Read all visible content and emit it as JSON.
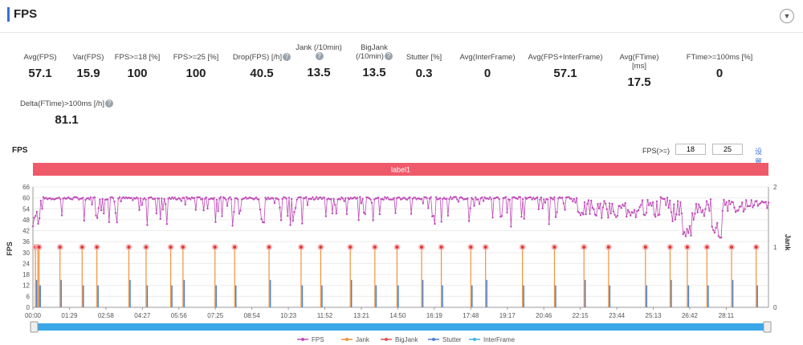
{
  "header": {
    "title": "FPS",
    "collapse_icon": "chevron-down-icon"
  },
  "metrics": [
    {
      "label": "Avg(FPS)",
      "value": "57.1",
      "help": false
    },
    {
      "label": "Var(FPS)",
      "value": "15.9",
      "help": false
    },
    {
      "label": "FPS>=18 [%]",
      "value": "100",
      "help": false
    },
    {
      "label": "FPS>=25 [%]",
      "value": "100",
      "help": false
    },
    {
      "label": "Drop(FPS) [/h]",
      "value": "40.5",
      "help": true
    },
    {
      "label": "Jank (/10min)",
      "value": "13.5",
      "help": true
    },
    {
      "label": "BigJank (/10min)",
      "value": "13.5",
      "help": true
    },
    {
      "label": "Stutter [%]",
      "value": "0.3",
      "help": false
    },
    {
      "label": "Avg(InterFrame)",
      "value": "0",
      "help": false
    },
    {
      "label": "Avg(FPS+InterFrame)",
      "value": "57.1",
      "help": false
    },
    {
      "label": "Avg(FTime) [ms]",
      "value": "17.5",
      "help": false
    },
    {
      "label": "FTime>=100ms [%]",
      "value": "0",
      "help": false
    },
    {
      "label": "Delta(FTime)>100ms [/h]",
      "value": "81.1",
      "help": true
    }
  ],
  "chart": {
    "title": "FPS",
    "fps_threshold_label": "FPS(>=)",
    "fps_threshold_1": "18",
    "fps_threshold_2": "25",
    "settings_link": "设置",
    "label_band": "label1"
  },
  "chart_data": {
    "type": "line",
    "title": "FPS",
    "ylabel": "FPS",
    "y2label": "Jank",
    "ylim": [
      0,
      66
    ],
    "y2lim": [
      0,
      2
    ],
    "yticks": [
      "0",
      "6",
      "12",
      "18",
      "24",
      "30",
      "36",
      "42",
      "48",
      "54",
      "60",
      "66"
    ],
    "y2ticks": [
      "0",
      "1",
      "2"
    ],
    "xticks": [
      "00:00",
      "01:29",
      "02:58",
      "04:27",
      "05:56",
      "07:25",
      "08:54",
      "10:23",
      "11:52",
      "13:21",
      "14:50",
      "16:19",
      "17:48",
      "19:17",
      "20:46",
      "22:15",
      "23:44",
      "25:13",
      "26:42",
      "28:11"
    ],
    "xlim_min": [
      0,
      29.9
    ],
    "series": [
      {
        "name": "FPS",
        "color": "#c04cb8",
        "baseline": 59,
        "dip_min": 38
      },
      {
        "name": "Jank",
        "color": "#f0923a",
        "values_min": [
          0.1,
          0.2,
          0.25,
          1.1,
          2.0,
          2.6,
          3.9,
          4.6,
          5.6,
          6.1,
          7.4,
          8.2,
          9.6,
          10.9,
          11.7,
          12.9,
          13.9,
          14.8,
          15.8,
          16.6,
          17.8,
          18.4,
          19.9,
          21.2,
          22.4,
          23.4,
          24.9,
          25.9,
          26.6,
          27.4,
          28.4,
          29.4
        ]
      },
      {
        "name": "BigJank",
        "color": "#e05050"
      },
      {
        "name": "Stutter",
        "color": "#4a7fd0"
      },
      {
        "name": "InterFrame",
        "color": "#3bb4ea"
      }
    ],
    "legend_position": "bottom"
  }
}
